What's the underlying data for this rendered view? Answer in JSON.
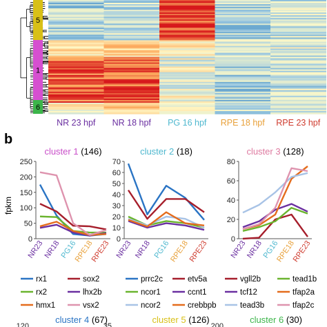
{
  "heatmap": {
    "columns": [
      {
        "label": "NR 23 hpf",
        "color": "#6a2fa0"
      },
      {
        "label": "NR 18 hpf",
        "color": "#6a2fa0"
      },
      {
        "label": "PG 16 hpf",
        "color": "#4fb8cf"
      },
      {
        "label": "RPE 18 hpf",
        "color": "#e8a13a"
      },
      {
        "label": "RPE 23 hpf",
        "color": "#cf3b2e"
      }
    ],
    "cluster_bands": [
      {
        "label": "5",
        "color": "#d8c017"
      },
      {
        "label": "1",
        "color": "#d64fd0"
      },
      {
        "label": "6",
        "color": "#3cb54a"
      }
    ]
  },
  "panel_b_label": "b",
  "y_axis_title": "fpkm",
  "x_ticks": [
    {
      "label": "NR23",
      "color": "#6a2fa0"
    },
    {
      "label": "NR18",
      "color": "#6a2fa0"
    },
    {
      "label": "PG16",
      "color": "#4fb8cf"
    },
    {
      "label": "RPE18",
      "color": "#e8a13a"
    },
    {
      "label": "RPE23",
      "color": "#cf3b2e"
    }
  ],
  "chart_data": [
    {
      "type": "line",
      "title": "cluster 1",
      "count": "(146)",
      "title_color": "#c94fc9",
      "x": [
        "NR23",
        "NR18",
        "PG16",
        "RPE18",
        "RPE23"
      ],
      "ylim": [
        0,
        250
      ],
      "yticks": [
        0,
        50,
        100,
        150,
        200,
        250
      ],
      "series": [
        {
          "name": "rx1",
          "color": "#2a74c4",
          "values": [
            175,
            75,
            15,
            10,
            15
          ]
        },
        {
          "name": "sox2",
          "color": "#a61e2b",
          "values": [
            113,
            88,
            42,
            40,
            30
          ]
        },
        {
          "name": "rx2",
          "color": "#6ab42e",
          "values": [
            72,
            70,
            25,
            20,
            20
          ]
        },
        {
          "name": "lhx2b",
          "color": "#6a2fa0",
          "values": [
            35,
            45,
            20,
            10,
            18
          ]
        },
        {
          "name": "hmx1",
          "color": "#e46c1c",
          "values": [
            40,
            55,
            25,
            12,
            15
          ]
        },
        {
          "name": "vsx2",
          "color": "#de93ae",
          "values": [
            215,
            205,
            50,
            12,
            28
          ]
        }
      ]
    },
    {
      "type": "line",
      "title": "cluster 2",
      "count": "(18)",
      "title_color": "#4fb8cf",
      "x": [
        "NR23",
        "NR18",
        "PG16",
        "RPE18",
        "RPE23"
      ],
      "ylim": [
        0,
        70
      ],
      "yticks": [
        0,
        10,
        20,
        30,
        40,
        50,
        60,
        70
      ],
      "series": [
        {
          "name": "prrc2c",
          "color": "#2a74c4",
          "values": [
            68,
            22,
            48,
            37,
            17
          ]
        },
        {
          "name": "etv5a",
          "color": "#a61e2b",
          "values": [
            44,
            18,
            36,
            36,
            24
          ]
        },
        {
          "name": "ncor1",
          "color": "#6ab42e",
          "values": [
            20,
            12,
            16,
            14,
            10
          ]
        },
        {
          "name": "ccnt1",
          "color": "#6a2fa0",
          "values": [
            16,
            10,
            14,
            12,
            8
          ]
        },
        {
          "name": "ncor2",
          "color": "#a8c3e6",
          "values": [
            18,
            12,
            20,
            18,
            10
          ]
        },
        {
          "name": "crebbpb",
          "color": "#e46c1c",
          "values": [
            17,
            11,
            24,
            14,
            12
          ]
        }
      ]
    },
    {
      "type": "line",
      "title": "cluster 3",
      "count": "(128)",
      "title_color": "#de7aa0",
      "x": [
        "NR23",
        "NR18",
        "PG16",
        "RPE18",
        "RPE23"
      ],
      "ylim": [
        0,
        80
      ],
      "yticks": [
        0,
        20,
        40,
        60,
        80
      ],
      "series": [
        {
          "name": "vgll2b",
          "color": "#a61e2b",
          "values": [
            0,
            1,
            20,
            25,
            2
          ]
        },
        {
          "name": "tead1b",
          "color": "#6ab42e",
          "values": [
            8,
            12,
            18,
            32,
            26
          ]
        },
        {
          "name": "tcf12",
          "color": "#6a2fa0",
          "values": [
            12,
            18,
            30,
            36,
            28
          ]
        },
        {
          "name": "tfap2a",
          "color": "#e46c1c",
          "values": [
            10,
            14,
            25,
            62,
            75
          ]
        },
        {
          "name": "tead3b",
          "color": "#a8c3e6",
          "values": [
            27,
            35,
            48,
            64,
            68
          ]
        },
        {
          "name": "tfap2c",
          "color": "#de93ae",
          "values": [
            10,
            15,
            32,
            73,
            70
          ]
        }
      ]
    },
    {
      "type": "line",
      "title": "cluster 4",
      "count": "(67)",
      "title_color": "#2a74c4",
      "ylim": [
        0,
        120
      ],
      "yticks": [
        120
      ],
      "series": []
    },
    {
      "type": "line",
      "title": "cluster 5",
      "count": "(126)",
      "title_color": "#d8c017",
      "ylim": [
        0,
        35
      ],
      "yticks": [
        35
      ],
      "series": []
    },
    {
      "type": "line",
      "title": "cluster 6",
      "count": "(30)",
      "title_color": "#3cb54a",
      "ylim": [
        0,
        200
      ],
      "yticks": [
        200
      ],
      "series": []
    }
  ]
}
